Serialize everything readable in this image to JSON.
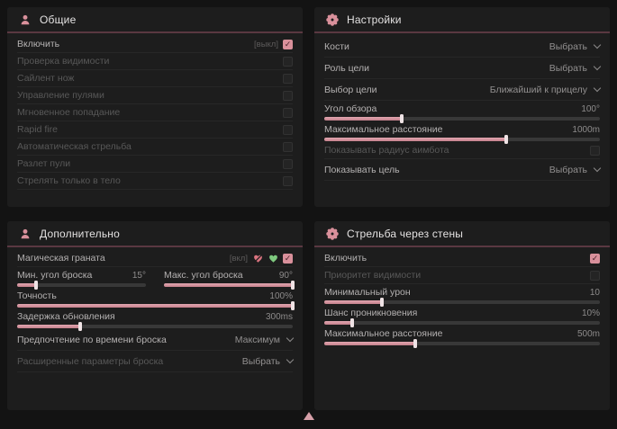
{
  "colors": {
    "accent_pink": "#d9909b",
    "accent_green": "#7fc97f",
    "header_underline": "#5a3841",
    "panel_bg": "#1d1d1d",
    "page_bg": "#131313"
  },
  "icons": {
    "general_header": "person-target-icon",
    "settings_header": "gear-flower-icon",
    "additional_header": "person-target-icon",
    "wallbang_header": "gear-flower-icon",
    "grenade_off_state": "heart-crossed-icon",
    "grenade_on_state": "heart-icon",
    "dropdown": "chevron-down-icon",
    "checkbox_mark": "check-icon",
    "bottom_center": "cursor-triangle-icon"
  },
  "general_panel": {
    "title": "Общие",
    "enable": {
      "label": "Включить",
      "tag": "[выкл]",
      "checked": true
    },
    "visibility_check": {
      "label": "Проверка видимости",
      "checked": false
    },
    "silent_knife": {
      "label": "Сайлент нож",
      "checked": false
    },
    "bullet_control": {
      "label": "Управление пулями",
      "checked": false
    },
    "instant_hit": {
      "label": "Мгновенное попадание",
      "checked": false
    },
    "rapid_fire": {
      "label": "Rapid fire",
      "checked": false
    },
    "auto_fire": {
      "label": "Автоматическая стрельба",
      "checked": false
    },
    "bullet_spread": {
      "label": "Разлет пули",
      "checked": false
    },
    "body_only": {
      "label": "Стрелять только в тело",
      "checked": false
    }
  },
  "settings_panel": {
    "title": "Настройки",
    "bones": {
      "label": "Кости",
      "value": "Выбрать"
    },
    "target_role": {
      "label": "Роль цели",
      "value": "Выбрать"
    },
    "target_choice": {
      "label": "Выбор цели",
      "value": "Ближайший к прицелу"
    },
    "fov": {
      "label": "Угол обзора",
      "value": "100°",
      "percent": 28
    },
    "max_distance": {
      "label": "Максимальное расстояние",
      "value": "1000m",
      "percent": 66
    },
    "show_aimbot_radius": {
      "label": "Показывать радиус аимбота",
      "checked": false
    },
    "show_target": {
      "label": "Показывать цель",
      "value": "Выбрать"
    }
  },
  "additional_panel": {
    "title": "Дополнительно",
    "magic_grenade": {
      "label": "Магическая граната",
      "tag": "[вкл]",
      "checked": true
    },
    "min_throw_angle": {
      "label": "Мин. угол броска",
      "value": "15°",
      "percent": 15
    },
    "max_throw_angle": {
      "label": "Макс. угол броска",
      "value": "90°",
      "percent": 100
    },
    "accuracy": {
      "label": "Точность",
      "value": "100%",
      "percent": 100
    },
    "update_delay": {
      "label": "Задержка обновления",
      "value": "300ms",
      "percent": 23
    },
    "throw_time_pref": {
      "label": "Предпочтение по времени броска",
      "value": "Максимум"
    },
    "advanced_throw": {
      "label": "Расширенные параметры броска",
      "value": "Выбрать"
    }
  },
  "wallbang_panel": {
    "title": "Стрельба через стены",
    "enable": {
      "label": "Включить",
      "checked": true
    },
    "visibility_priority": {
      "label": "Приоритет видимости",
      "checked": false
    },
    "min_damage": {
      "label": "Минимальный урон",
      "value": "10",
      "percent": 21
    },
    "penetration_chance": {
      "label": "Шанс проникновения",
      "value": "10%",
      "percent": 10
    },
    "max_distance": {
      "label": "Максимальное расстояние",
      "value": "500m",
      "percent": 33
    }
  }
}
